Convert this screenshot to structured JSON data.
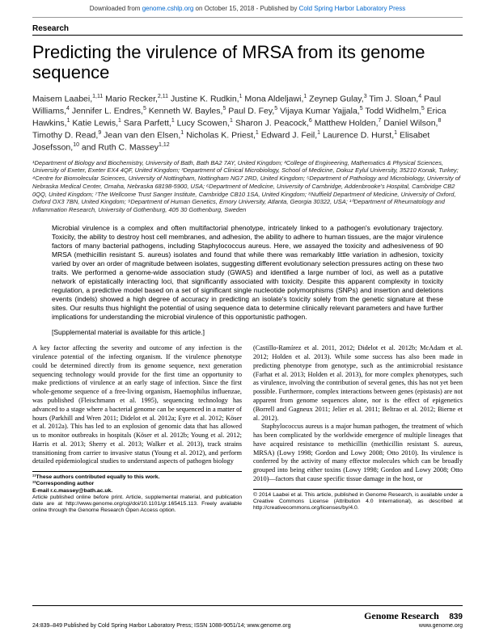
{
  "banner": {
    "prefix": "Downloaded from ",
    "site": "genome.cshlp.org",
    "mid": " on October 15, 2018 - Published by ",
    "publisher": "Cold Spring Harbor Laboratory Press"
  },
  "section": "Research",
  "title": "Predicting the virulence of MRSA from its genome sequence",
  "authors_html": "Maisem Laabei,<sup>1,11</sup> Mario Recker,<sup>2,11</sup> Justine K. Rudkin,<sup>1</sup> Mona Aldeljawi,<sup>1</sup> Zeynep Gulay,<sup>3</sup> Tim J. Sloan,<sup>4</sup> Paul Williams,<sup>4</sup> Jennifer L. Endres,<sup>5</sup> Kenneth W. Bayles,<sup>5</sup> Paul D. Fey,<sup>5</sup> Vijaya Kumar Yajjala,<sup>5</sup> Todd Widhelm,<sup>5</sup> Erica Hawkins,<sup>1</sup> Katie Lewis,<sup>1</sup> Sara Parfett,<sup>1</sup> Lucy Scowen,<sup>1</sup> Sharon J. Peacock,<sup>6</sup> Matthew Holden,<sup>7</sup> Daniel Wilson,<sup>8</sup> Timothy D. Read,<sup>9</sup> Jean van den Elsen,<sup>1</sup> Nicholas K. Priest,<sup>1</sup> Edward J. Feil,<sup>1</sup> Laurence D. Hurst,<sup>1</sup> Elisabet Josefsson,<sup>10</sup> and Ruth C. Massey<sup>1,12</sup>",
  "affiliations": "¹Department of Biology and Biochemistry, University of Bath, Bath BA2 7AY, United Kingdom; ²College of Engineering, Mathematics & Physical Sciences, University of Exeter, Exeter EX4 4QF, United Kingdom; ³Department of Clinical Microbiology, School of Medicine, Dokuz Eylul University, 35210 Konak, Turkey; ⁴Centre for Biomolecular Sciences, University of Nottingham, Nottingham NG7 2RD, United Kingdom; ⁵Department of Pathology and Microbiology, University of Nebraska Medical Center, Omaha, Nebraska 68198-5900, USA; ⁶Department of Medicine, University of Cambridge, Addenbrooke's Hospital, Cambridge CB2 0QQ, United Kingdom; ⁷The Wellcome Trust Sanger Institute, Cambridge CB10 1SA, United Kingdom; ⁸Nuffield Department of Medicine, University of Oxford, Oxford OX3 7BN, United Kingdom; ⁹Department of Human Genetics, Emory University, Atlanta, Georgia 30322, USA; ¹⁰Department of Rheumatology and Inflammation Research, University of Gothenburg, 405 30 Gothenburg, Sweden",
  "abstract": "Microbial virulence is a complex and often multifactorial phenotype, intricately linked to a pathogen's evolutionary trajectory. Toxicity, the ability to destroy host cell membranes, and adhesion, the ability to adhere to human tissues, are the major virulence factors of many bacterial pathogens, including Staphylococcus aureus. Here, we assayed the toxicity and adhesiveness of 90 MRSA (methicillin resistant S. aureus) isolates and found that while there was remarkably little variation in adhesion, toxicity varied by over an order of magnitude between isolates, suggesting different evolutionary selection pressures acting on these two traits. We performed a genome-wide association study (GWAS) and identified a large number of loci, as well as a putative network of epistatically interacting loci, that significantly associated with toxicity. Despite this apparent complexity in toxicity regulation, a predictive model based on a set of significant single nucleotide polymorphisms (SNPs) and insertion and deletions events (indels) showed a high degree of accuracy in predicting an isolate's toxicity solely from the genetic signature at these sites. Our results thus highlight the potential of using sequence data to determine clinically relevant parameters and have further implications for understanding the microbial virulence of this opportunistic pathogen.",
  "supplemental": "[Supplemental material is available for this article.]",
  "col1": {
    "p1": "A key factor affecting the severity and outcome of any infection is the virulence potential of the infecting organism. If the virulence phenotype could be determined directly from its genome sequence, next generation sequencing technology would provide for the first time an opportunity to make predictions of virulence at an early stage of infection. Since the first whole-genome sequence of a free-living organism, Haemophilus influenzae, was published (Fleischmann et al. 1995), sequencing technology has advanced to a stage where a bacterial genome can be sequenced in a matter of hours (Parkhill and Wren 2011; Didelot et al. 2012a; Eyre et al. 2012; Köser et al. 2012a). This has led to an explosion of genomic data that has allowed us to monitor outbreaks in hospitals (Köser et al. 2012b; Young et al. 2012; Harris et al. 2013; Sherry et al. 2013; Walker et al. 2013), track strains transitioning from carrier to invasive status (Young et al. 2012), and perform detailed epidemiological studies to understand aspects of pathogen biology"
  },
  "col2": {
    "p1": "(Castillo-Ramírez et al. 2011, 2012; Didelot et al. 2012b; McAdam et al. 2012; Holden et al. 2013). While some success has also been made in predicting phenotype from genotype, such as the antimicrobial resistance (Farhat et al. 2013; Holden et al. 2013), for more complex phenotypes, such as virulence, involving the contribution of several genes, this has not yet been possible. Furthermore, complex interactions between genes (epistasis) are not apparent from genome sequences alone, nor is the effect of epigenetics (Borrell and Gagneux 2011; Jelier et al. 2011; Beltrao et al. 2012; Bierne et al. 2012).",
    "p2": "Staphylococcus aureus is a major human pathogen, the treatment of which has been complicated by the worldwide emergence of multiple lineages that have acquired resistance to methicillin (methicillin resistant S. aureus, MRSA) (Lowy 1998; Gordon and Lowy 2008; Otto 2010). Its virulence is conferred by the activity of many effector molecules which can be broadly grouped into being either toxins (Lowy 1998; Gordon and Lowy 2008; Otto 2010)—factors that cause specific tissue damage in the host, or"
  },
  "footnotes": {
    "l1": "¹¹These authors contributed equally to this work.",
    "l2": "¹²Corresponding author",
    "l3": "E-mail r.c.massey@bath.ac.uk.",
    "l4": "Article published online before print. Article, supplemental material, and publication date are at http://www.genome.org/cgi/doi/10.1101/gr.165415.113. Freely available online through the Genome Research Open Access option."
  },
  "copyright": "© 2014 Laabei et al.  This article, published in Genome Research, is available under a Creative Commons License (Attribution 4.0 International), as described at http://creativecommons.org/licenses/by/4.0.",
  "footer": {
    "left": "24:839–849 Published by Cold Spring Harbor Laboratory Press; ISSN 1088-9051/14; www.genome.org",
    "journal": "Genome Research",
    "page": "839",
    "url": "www.genome.org"
  }
}
